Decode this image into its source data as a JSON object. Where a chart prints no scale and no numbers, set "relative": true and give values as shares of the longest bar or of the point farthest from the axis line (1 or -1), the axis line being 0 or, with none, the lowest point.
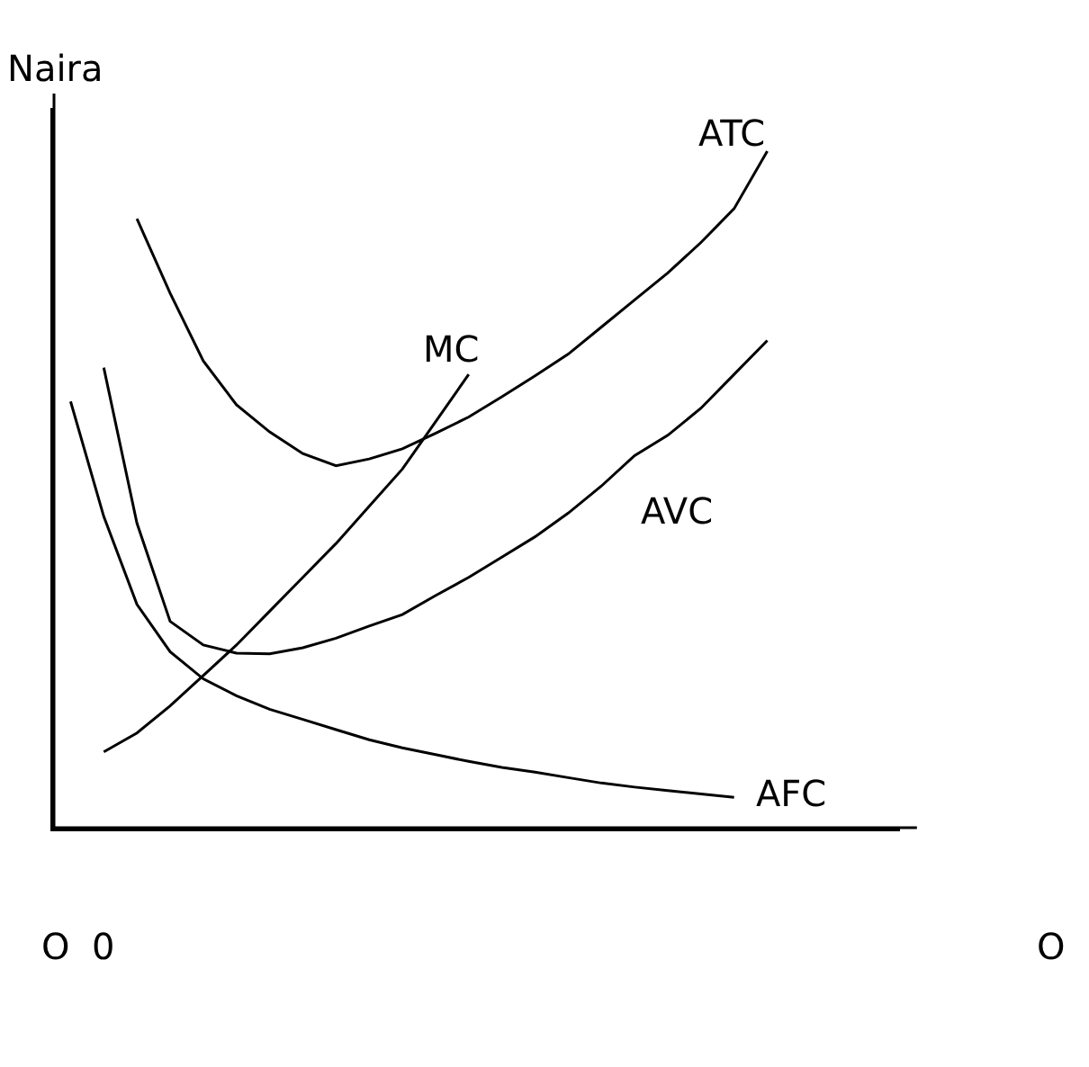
{
  "chart_data": {
    "type": "line",
    "relative": true,
    "ylabel": "Naira",
    "legend": false,
    "grid": false,
    "marker": "none",
    "line_style": "solid",
    "categories": [
      null,
      null,
      null,
      null,
      null,
      null,
      null,
      null,
      null,
      null,
      null,
      null,
      null,
      null,
      null,
      null,
      null,
      null,
      null,
      null,
      null,
      null
    ],
    "series": [
      {
        "name": "ATC",
        "color": "#000000",
        "values": [
          null,
          null,
          0.9,
          0.79,
          0.69,
          0.625,
          0.585,
          0.553,
          0.535,
          0.545,
          0.56,
          0.583,
          0.607,
          0.637,
          0.668,
          0.7,
          0.74,
          0.78,
          0.82,
          0.865,
          0.915,
          1
        ]
      },
      {
        "name": "MC",
        "color": "#000000",
        "values": [
          null,
          0.112,
          0.14,
          0.18,
          0.225,
          0.27,
          0.32,
          0.37,
          0.42,
          0.475,
          0.53,
          0.6,
          0.67,
          null,
          null,
          null,
          null,
          null,
          null,
          null,
          null,
          null
        ]
      },
      {
        "name": "AVC",
        "color": "#000000",
        "values": [
          null,
          0.68,
          0.45,
          0.305,
          0.27,
          0.258,
          0.257,
          0.266,
          0.28,
          0.298,
          0.315,
          0.343,
          0.37,
          0.4,
          0.43,
          0.465,
          0.505,
          0.55,
          0.58,
          0.62,
          0.67,
          0.72
        ]
      },
      {
        "name": "AFC",
        "color": "#000000",
        "values": [
          0.63,
          0.46,
          0.33,
          0.26,
          0.22,
          0.195,
          0.175,
          0.16,
          0.145,
          0.13,
          0.118,
          0.108,
          0.098,
          0.089,
          0.082,
          0.074,
          0.066,
          0.06,
          0.055,
          0.05,
          0.045,
          null
        ]
      }
    ],
    "annotations": [
      "O",
      "0",
      "O"
    ]
  }
}
